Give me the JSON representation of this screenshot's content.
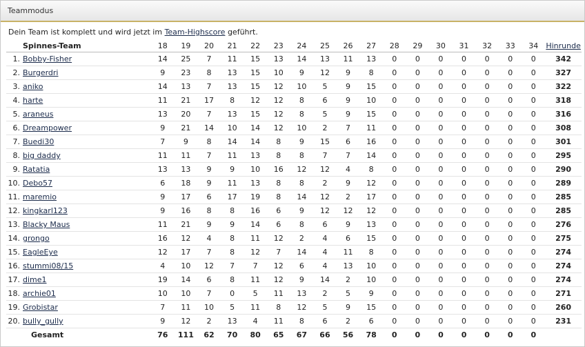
{
  "panel": {
    "title": "Teammodus",
    "intro": {
      "before": "Dein Team ist komplett und wird jetzt im ",
      "link": "Team-Highscore",
      "after": " geführt."
    }
  },
  "table": {
    "team_label": "Spinnes-Team",
    "columns": [
      "18",
      "19",
      "20",
      "21",
      "22",
      "23",
      "24",
      "25",
      "26",
      "27",
      "28",
      "29",
      "30",
      "31",
      "32",
      "33",
      "34"
    ],
    "total_label": "Hinrunde",
    "rows": [
      [
        "1.",
        "Bobby-Fisher",
        [
          14,
          25,
          7,
          11,
          15,
          13,
          14,
          13,
          11,
          13,
          0,
          0,
          0,
          0,
          0,
          0,
          0
        ],
        342
      ],
      [
        "2.",
        "Burgerdri",
        [
          9,
          23,
          8,
          13,
          15,
          10,
          9,
          12,
          9,
          8,
          0,
          0,
          0,
          0,
          0,
          0,
          0
        ],
        327
      ],
      [
        "3.",
        "aniko",
        [
          14,
          13,
          7,
          13,
          15,
          12,
          10,
          5,
          9,
          15,
          0,
          0,
          0,
          0,
          0,
          0,
          0
        ],
        322
      ],
      [
        "4.",
        "harte",
        [
          11,
          21,
          17,
          8,
          12,
          12,
          8,
          6,
          9,
          10,
          0,
          0,
          0,
          0,
          0,
          0,
          0
        ],
        318
      ],
      [
        "5.",
        "araneus",
        [
          13,
          20,
          7,
          13,
          15,
          12,
          8,
          5,
          9,
          15,
          0,
          0,
          0,
          0,
          0,
          0,
          0
        ],
        316
      ],
      [
        "6.",
        "Dreampower",
        [
          9,
          21,
          14,
          10,
          14,
          12,
          10,
          2,
          7,
          11,
          0,
          0,
          0,
          0,
          0,
          0,
          0
        ],
        308
      ],
      [
        "7.",
        "Buedi30",
        [
          7,
          9,
          8,
          14,
          14,
          8,
          9,
          15,
          6,
          16,
          0,
          0,
          0,
          0,
          0,
          0,
          0
        ],
        301
      ],
      [
        "8.",
        "big daddy",
        [
          11,
          11,
          7,
          11,
          13,
          8,
          8,
          7,
          7,
          14,
          0,
          0,
          0,
          0,
          0,
          0,
          0
        ],
        295
      ],
      [
        "9.",
        "Ratatia",
        [
          13,
          13,
          9,
          9,
          10,
          16,
          12,
          12,
          4,
          8,
          0,
          0,
          0,
          0,
          0,
          0,
          0
        ],
        290
      ],
      [
        "10.",
        "Debo57",
        [
          6,
          18,
          9,
          11,
          13,
          8,
          8,
          2,
          9,
          12,
          0,
          0,
          0,
          0,
          0,
          0,
          0
        ],
        289
      ],
      [
        "11.",
        "maremio",
        [
          9,
          17,
          6,
          17,
          19,
          8,
          14,
          12,
          2,
          17,
          0,
          0,
          0,
          0,
          0,
          0,
          0
        ],
        285
      ],
      [
        "12.",
        "kingkarl123",
        [
          9,
          16,
          8,
          8,
          16,
          6,
          9,
          12,
          12,
          12,
          0,
          0,
          0,
          0,
          0,
          0,
          0
        ],
        285
      ],
      [
        "13.",
        "Blacky Maus",
        [
          11,
          21,
          9,
          9,
          14,
          6,
          8,
          6,
          9,
          13,
          0,
          0,
          0,
          0,
          0,
          0,
          0
        ],
        276
      ],
      [
        "14.",
        "grongo",
        [
          16,
          12,
          4,
          8,
          11,
          12,
          2,
          4,
          6,
          15,
          0,
          0,
          0,
          0,
          0,
          0,
          0
        ],
        275
      ],
      [
        "15.",
        "EagleEye",
        [
          12,
          17,
          7,
          8,
          12,
          7,
          14,
          4,
          11,
          8,
          0,
          0,
          0,
          0,
          0,
          0,
          0
        ],
        274
      ],
      [
        "16.",
        "stummi08/15",
        [
          4,
          10,
          12,
          7,
          7,
          12,
          6,
          4,
          13,
          10,
          0,
          0,
          0,
          0,
          0,
          0,
          0
        ],
        274
      ],
      [
        "17.",
        "dime1",
        [
          19,
          14,
          6,
          8,
          11,
          12,
          9,
          14,
          2,
          10,
          0,
          0,
          0,
          0,
          0,
          0,
          0
        ],
        274
      ],
      [
        "18.",
        "archie01",
        [
          10,
          10,
          7,
          0,
          5,
          11,
          13,
          2,
          5,
          9,
          0,
          0,
          0,
          0,
          0,
          0,
          0
        ],
        271
      ],
      [
        "19.",
        "Grobistar",
        [
          7,
          11,
          10,
          5,
          11,
          8,
          12,
          5,
          9,
          15,
          0,
          0,
          0,
          0,
          0,
          0,
          0
        ],
        260
      ],
      [
        "20.",
        "bully_gully",
        [
          9,
          12,
          2,
          13,
          4,
          11,
          8,
          6,
          2,
          6,
          0,
          0,
          0,
          0,
          0,
          0,
          0
        ],
        231
      ]
    ],
    "sum_label": "Gesamt",
    "sums": [
      76,
      111,
      62,
      70,
      80,
      65,
      67,
      66,
      56,
      78,
      0,
      0,
      0,
      0,
      0,
      0,
      0
    ]
  }
}
